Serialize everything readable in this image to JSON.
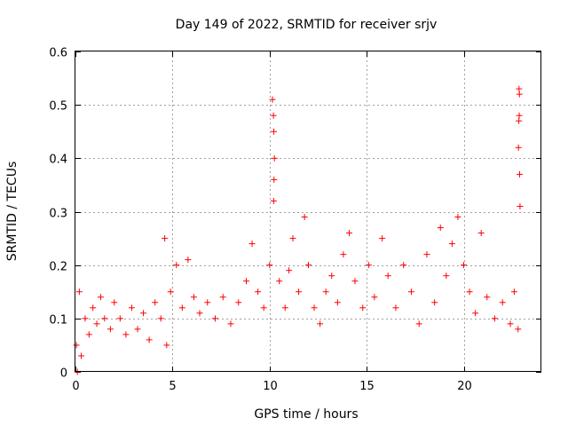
{
  "chart_data": {
    "type": "scatter",
    "title": "Day 149 of 2022, SRMTID for receiver srjv",
    "xlabel": "GPS time / hours",
    "ylabel": "SRMTID / TECUs",
    "xlim": [
      0,
      24
    ],
    "ylim": [
      0,
      0.6
    ],
    "xticks": [
      0,
      5,
      10,
      15,
      20
    ],
    "yticks": [
      0,
      0.1,
      0.2,
      0.3,
      0.4,
      0.5,
      0.6
    ],
    "grid": true,
    "marker": "+",
    "color": "#ff0000",
    "series": [
      {
        "name": "SRMTID",
        "points": [
          [
            0.05,
            0.05
          ],
          [
            0.1,
            0.0
          ],
          [
            0.2,
            0.15
          ],
          [
            0.3,
            0.03
          ],
          [
            0.5,
            0.1
          ],
          [
            0.7,
            0.07
          ],
          [
            0.9,
            0.12
          ],
          [
            1.1,
            0.09
          ],
          [
            1.3,
            0.14
          ],
          [
            1.5,
            0.1
          ],
          [
            1.8,
            0.08
          ],
          [
            2.0,
            0.13
          ],
          [
            2.3,
            0.1
          ],
          [
            2.6,
            0.07
          ],
          [
            2.9,
            0.12
          ],
          [
            3.2,
            0.08
          ],
          [
            3.5,
            0.11
          ],
          [
            3.8,
            0.06
          ],
          [
            4.1,
            0.13
          ],
          [
            4.4,
            0.1
          ],
          [
            4.6,
            0.25
          ],
          [
            4.7,
            0.05
          ],
          [
            4.9,
            0.15
          ],
          [
            5.2,
            0.2
          ],
          [
            5.5,
            0.12
          ],
          [
            5.8,
            0.21
          ],
          [
            6.1,
            0.14
          ],
          [
            6.4,
            0.11
          ],
          [
            6.8,
            0.13
          ],
          [
            7.2,
            0.1
          ],
          [
            7.6,
            0.14
          ],
          [
            8.0,
            0.09
          ],
          [
            8.4,
            0.13
          ],
          [
            8.8,
            0.17
          ],
          [
            9.1,
            0.24
          ],
          [
            9.4,
            0.15
          ],
          [
            9.7,
            0.12
          ],
          [
            10.0,
            0.2
          ],
          [
            10.15,
            0.51
          ],
          [
            10.2,
            0.48
          ],
          [
            10.22,
            0.45
          ],
          [
            10.25,
            0.4
          ],
          [
            10.23,
            0.36
          ],
          [
            10.21,
            0.32
          ],
          [
            10.5,
            0.17
          ],
          [
            10.8,
            0.12
          ],
          [
            11.0,
            0.19
          ],
          [
            11.2,
            0.25
          ],
          [
            11.5,
            0.15
          ],
          [
            11.8,
            0.29
          ],
          [
            12.0,
            0.2
          ],
          [
            12.3,
            0.12
          ],
          [
            12.6,
            0.09
          ],
          [
            12.9,
            0.15
          ],
          [
            13.2,
            0.18
          ],
          [
            13.5,
            0.13
          ],
          [
            13.8,
            0.22
          ],
          [
            14.1,
            0.26
          ],
          [
            14.4,
            0.17
          ],
          [
            14.8,
            0.12
          ],
          [
            15.1,
            0.2
          ],
          [
            15.4,
            0.14
          ],
          [
            15.8,
            0.25
          ],
          [
            16.1,
            0.18
          ],
          [
            16.5,
            0.12
          ],
          [
            16.9,
            0.2
          ],
          [
            17.3,
            0.15
          ],
          [
            17.7,
            0.09
          ],
          [
            18.1,
            0.22
          ],
          [
            18.5,
            0.13
          ],
          [
            18.8,
            0.27
          ],
          [
            19.1,
            0.18
          ],
          [
            19.4,
            0.24
          ],
          [
            19.7,
            0.29
          ],
          [
            20.0,
            0.2
          ],
          [
            20.3,
            0.15
          ],
          [
            20.6,
            0.11
          ],
          [
            20.9,
            0.26
          ],
          [
            21.2,
            0.14
          ],
          [
            21.6,
            0.1
          ],
          [
            22.0,
            0.13
          ],
          [
            22.4,
            0.09
          ],
          [
            22.6,
            0.15
          ],
          [
            22.8,
            0.08
          ],
          [
            22.85,
            0.53
          ],
          [
            22.87,
            0.52
          ],
          [
            22.86,
            0.48
          ],
          [
            22.84,
            0.47
          ],
          [
            22.82,
            0.42
          ],
          [
            22.88,
            0.37
          ],
          [
            22.9,
            0.31
          ]
        ]
      }
    ]
  }
}
